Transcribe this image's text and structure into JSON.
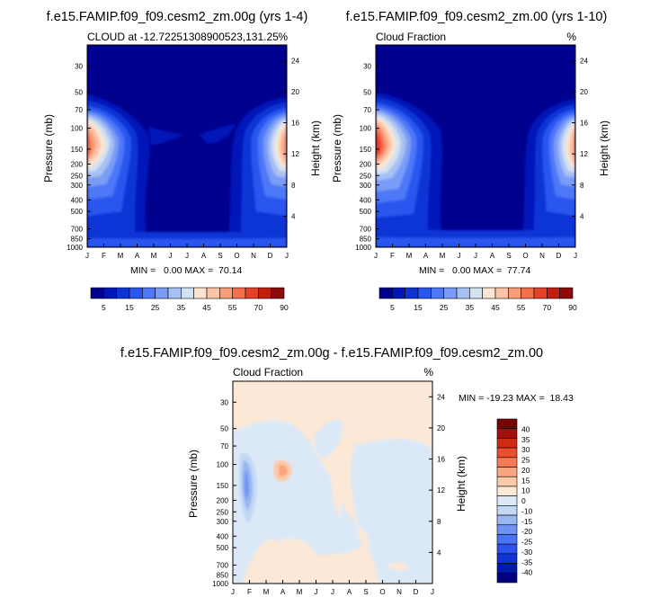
{
  "panels": [
    {
      "title": "f.e15.FAMIP.f09_f09.cesm2_zm.00g (yrs 1-4)",
      "left_label": "CLOUD at -12.72251308900523,131.25",
      "right_label": "%",
      "stats": "MIN =   0.00 MAX =  70.14"
    },
    {
      "title": "f.e15.FAMIP.f09_f09.cesm2_zm.00 (yrs 1-10)",
      "left_label": "Cloud Fraction",
      "right_label": "%",
      "stats": "MIN =   0.00 MAX =  77.74"
    },
    {
      "title": "f.e15.FAMIP.f09_f09.cesm2_zm.00g - f.e15.FAMIP.f09_f09.cesm2_zm.00",
      "left_label": "Cloud Fraction",
      "right_label": "%",
      "stats": "MIN = -19.23 MAX =  18.43"
    }
  ],
  "chart_data": [
    {
      "type": "heatmap",
      "title": "f.e15.FAMIP.f09_f09.cesm2_zm.00g (yrs 1-4)",
      "xlabel": "",
      "ylabel": "Pressure (mb)",
      "y2label": "Height (km)",
      "x_ticks": [
        "J",
        "F",
        "M",
        "A",
        "M",
        "J",
        "J",
        "A",
        "S",
        "O",
        "N",
        "D",
        "J"
      ],
      "y_ticks": [
        "30",
        "50",
        "70",
        "100",
        "150",
        "200",
        "250",
        "300",
        "400",
        "500",
        "700",
        "850",
        "1000"
      ],
      "y2_ticks": [
        "24",
        "20",
        "16",
        "12",
        "8",
        "4"
      ],
      "ylim": [
        1000,
        20
      ],
      "y_scale": "log",
      "min": 0.0,
      "max": 70.14,
      "peaks": [
        {
          "month": 0,
          "pressure": 160,
          "value": 70
        },
        {
          "month": 12,
          "pressure": 160,
          "value": 70
        }
      ],
      "colorbar": {
        "labels": [
          "5",
          "15",
          "25",
          "35",
          "45",
          "55",
          "70",
          "90"
        ]
      }
    },
    {
      "type": "heatmap",
      "title": "f.e15.FAMIP.f09_f09.cesm2_zm.00 (yrs 1-10)",
      "xlabel": "",
      "ylabel": "Pressure (mb)",
      "y2label": "Height (km)",
      "x_ticks": [
        "J",
        "F",
        "M",
        "A",
        "M",
        "J",
        "J",
        "A",
        "S",
        "O",
        "N",
        "D",
        "J"
      ],
      "y_ticks": [
        "30",
        "50",
        "70",
        "100",
        "150",
        "200",
        "250",
        "300",
        "400",
        "500",
        "700",
        "850",
        "1000"
      ],
      "y2_ticks": [
        "24",
        "20",
        "16",
        "12",
        "8",
        "4"
      ],
      "ylim": [
        1000,
        20
      ],
      "y_scale": "log",
      "min": 0.0,
      "max": 77.74,
      "peaks": [
        {
          "month": 0.5,
          "pressure": 150,
          "value": 77
        },
        {
          "month": 12,
          "pressure": 160,
          "value": 75
        }
      ],
      "colorbar": {
        "labels": [
          "5",
          "15",
          "25",
          "35",
          "45",
          "55",
          "70",
          "90"
        ]
      }
    },
    {
      "type": "heatmap",
      "title": "f.e15.FAMIP.f09_f09.cesm2_zm.00g - f.e15.FAMIP.f09_f09.cesm2_zm.00",
      "xlabel": "",
      "ylabel": "Pressure (mb)",
      "y2label": "Height (km)",
      "x_ticks": [
        "J",
        "F",
        "M",
        "A",
        "M",
        "J",
        "J",
        "A",
        "S",
        "O",
        "N",
        "D",
        "J"
      ],
      "y_ticks": [
        "30",
        "50",
        "70",
        "100",
        "150",
        "200",
        "250",
        "300",
        "400",
        "500",
        "700",
        "850",
        "1000"
      ],
      "y2_ticks": [
        "24",
        "20",
        "16",
        "12",
        "8",
        "4"
      ],
      "ylim": [
        1000,
        20
      ],
      "y_scale": "log",
      "min": -19.23,
      "max": 18.43,
      "colorbar": {
        "labels": [
          "40",
          "35",
          "30",
          "25",
          "20",
          "15",
          "10",
          "0",
          "-10",
          "-15",
          "-20",
          "-25",
          "-30",
          "-35",
          "-40"
        ]
      }
    }
  ],
  "colors": {
    "seq": [
      "#00008e",
      "#0016b8",
      "#0c34d6",
      "#2a56f0",
      "#4d78f7",
      "#7a9cf7",
      "#a7c0f3",
      "#d2e2f3",
      "#fbe4d0",
      "#fcc4a6",
      "#f99d77",
      "#f4704c",
      "#e54128",
      "#c11e0c",
      "#8d0b0b"
    ],
    "div": [
      "#000080",
      "#0018b4",
      "#1033d3",
      "#2d53ee",
      "#4b73f5",
      "#6f93f5",
      "#99b7f2",
      "#c3d8f4",
      "#dbe9f7",
      "#fce8d6",
      "#fccaa8",
      "#f9a57f",
      "#f57a55",
      "#eb4e2e",
      "#d02a12",
      "#a50f0b",
      "#7a0403"
    ]
  }
}
